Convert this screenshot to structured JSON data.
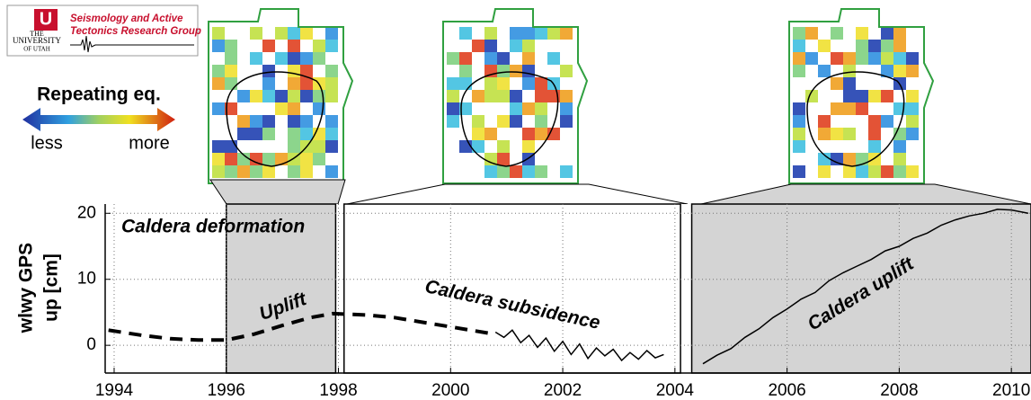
{
  "chart_data": {
    "type": "line",
    "logo": {
      "group": [
        "Seismology and Active",
        "Tectonics Research Group"
      ],
      "university": [
        "THE",
        "UNIVERSITY",
        "OF UTAH"
      ]
    },
    "legend_title": "Repeating eq.",
    "legend_low": "less",
    "legend_high": "more",
    "ylabel": [
      "wlwy GPS",
      "up [cm]"
    ],
    "annotations": [
      "Caldera deformation",
      "Uplift",
      "Caldera subsidence",
      "Caldera uplift"
    ],
    "xlim": [
      1993.84,
      2010.35
    ],
    "xticks": [
      1994,
      1996,
      1998,
      2000,
      2002,
      2004,
      2006,
      2008,
      2010
    ],
    "ylim": [
      -4.2,
      21.4
    ],
    "yticks": [
      0,
      10,
      20
    ],
    "grid": true,
    "panels": [
      {
        "start": 1996,
        "end": 1997.95,
        "fill": "#d4d4d4"
      },
      {
        "start": 1998.1,
        "end": 2004.1,
        "fill": "#ffffff"
      },
      {
        "start": 2004.3,
        "end": 2010.35,
        "fill": "#d4d4d4"
      }
    ],
    "series": [
      {
        "color": "#000000",
        "dashed": true,
        "x": [
          1993.9,
          1994.5,
          1995,
          1995.5,
          1996,
          1996.5,
          1997,
          1997.5,
          1997.9,
          1998.5,
          1999,
          1999.5,
          2000,
          2000.7
        ],
        "values": [
          2.3,
          1.5,
          1.0,
          0.8,
          0.8,
          1.7,
          3.0,
          4.2,
          4.8,
          4.6,
          4.2,
          3.5,
          2.8,
          1.8
        ]
      },
      {
        "color": "#000000",
        "dashed": false,
        "x": [
          2000.8,
          2000.95,
          2001.1,
          2001.25,
          2001.4,
          2001.55,
          2001.7,
          2001.85,
          2002.0,
          2002.15,
          2002.3,
          2002.45,
          2002.6,
          2002.75,
          2002.9,
          2003.05,
          2003.2,
          2003.35,
          2003.5,
          2003.65,
          2003.8
        ],
        "values": [
          2.0,
          1.2,
          2.3,
          0.4,
          1.5,
          -0.3,
          1.1,
          -0.9,
          0.6,
          -1.4,
          0.2,
          -2.0,
          -0.4,
          -1.6,
          -0.6,
          -2.3,
          -1.1,
          -2.1,
          -0.8,
          -1.9,
          -1.4
        ]
      },
      {
        "color": "#000000",
        "dashed": false,
        "x": [
          2004.5,
          2004.75,
          2005.0,
          2005.25,
          2005.5,
          2005.75,
          2006.0,
          2006.25,
          2006.5,
          2006.75,
          2007.0,
          2007.25,
          2007.5,
          2007.75,
          2008.0,
          2008.25,
          2008.5,
          2008.75,
          2009.0,
          2009.25,
          2009.5,
          2009.75,
          2010.0,
          2010.3
        ],
        "values": [
          -2.8,
          -1.5,
          -0.5,
          1.2,
          2.5,
          4.2,
          5.5,
          7.0,
          8.0,
          9.8,
          11.0,
          12.0,
          13.0,
          14.3,
          15.0,
          16.2,
          17.0,
          18.2,
          19.0,
          19.6,
          20.0,
          20.6,
          20.5,
          20.0
        ]
      }
    ]
  }
}
